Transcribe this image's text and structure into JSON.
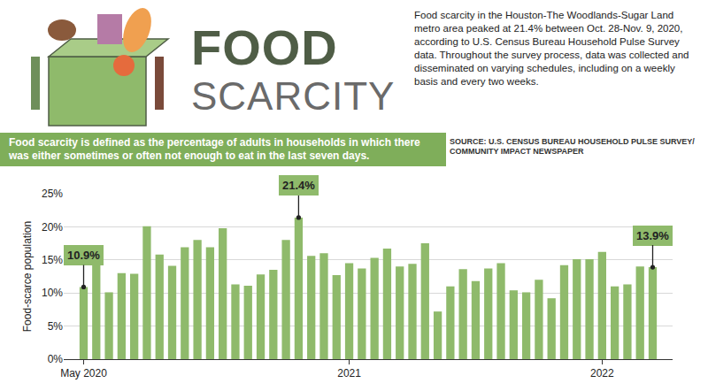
{
  "header": {
    "title_1": "FOOD",
    "title_2": "SCARCITY",
    "text": "Food scarcity in the Houston-The Woodlands-Sugar Land metro area peaked at 21.4% between Oct. 28-Nov. 9, 2020, according to U.S. Census Bureau Household Pulse Survey data. Throughout the survey process, data was collected and disseminated on varying schedules, including on a weekly basis and every two weeks.",
    "definition_term": "Food scarcity",
    "definition_text": " is defined as the percentage of adults in households in which there was either sometimes or often not enough to eat in the last seven days.",
    "source": [
      "SOURCE: U.S. CENSUS BUREAU HOUSEHOLD PULSE SURVEY/",
      "COMMUNITY IMPACT NEWSPAPER"
    ]
  },
  "chart_data": {
    "type": "bar",
    "y_label": "Food-scarce population",
    "categories": [
      "May 2020",
      null,
      null,
      null,
      null,
      null,
      null,
      null,
      null,
      null,
      null,
      null,
      null,
      null,
      null,
      null,
      null,
      null,
      null,
      null,
      null,
      "2021",
      null,
      null,
      null,
      null,
      null,
      null,
      null,
      null,
      null,
      null,
      null,
      null,
      null,
      null,
      null,
      null,
      null,
      null,
      null,
      "2022",
      null,
      null,
      null,
      null
    ],
    "values": [
      10.9,
      15.5,
      10.1,
      13,
      12.9,
      20.1,
      15.8,
      14.1,
      16.9,
      18,
      16.9,
      19.8,
      11.3,
      11.1,
      12.8,
      13.5,
      18,
      21.4,
      15.6,
      16,
      12.7,
      14.5,
      13.7,
      15.3,
      16.7,
      14,
      14.4,
      17.5,
      7.2,
      11,
      13.6,
      11.8,
      13.7,
      14.5,
      10.4,
      10.1,
      12,
      9.2,
      14.2,
      15.1,
      15.1,
      16.2,
      11,
      11.3,
      14,
      13.9
    ],
    "color": "#8fba6b",
    "ylim": [
      0,
      25
    ],
    "yticks": [
      {
        "value": 0,
        "label": "0%"
      },
      {
        "value": 5,
        "label": "5%"
      },
      {
        "value": 10,
        "label": "10%"
      },
      {
        "value": 15,
        "label": "15%"
      },
      {
        "value": 20,
        "label": "20%"
      },
      {
        "value": 25,
        "label": "25%"
      }
    ],
    "grid": true,
    "annotations": [
      {
        "position": 0,
        "value": 10.9,
        "text": "10.9%"
      },
      {
        "position": 17,
        "value": 21.4,
        "text": "21.4%"
      },
      {
        "position": 45,
        "value": 13.9,
        "text": "13.9%"
      }
    ]
  }
}
